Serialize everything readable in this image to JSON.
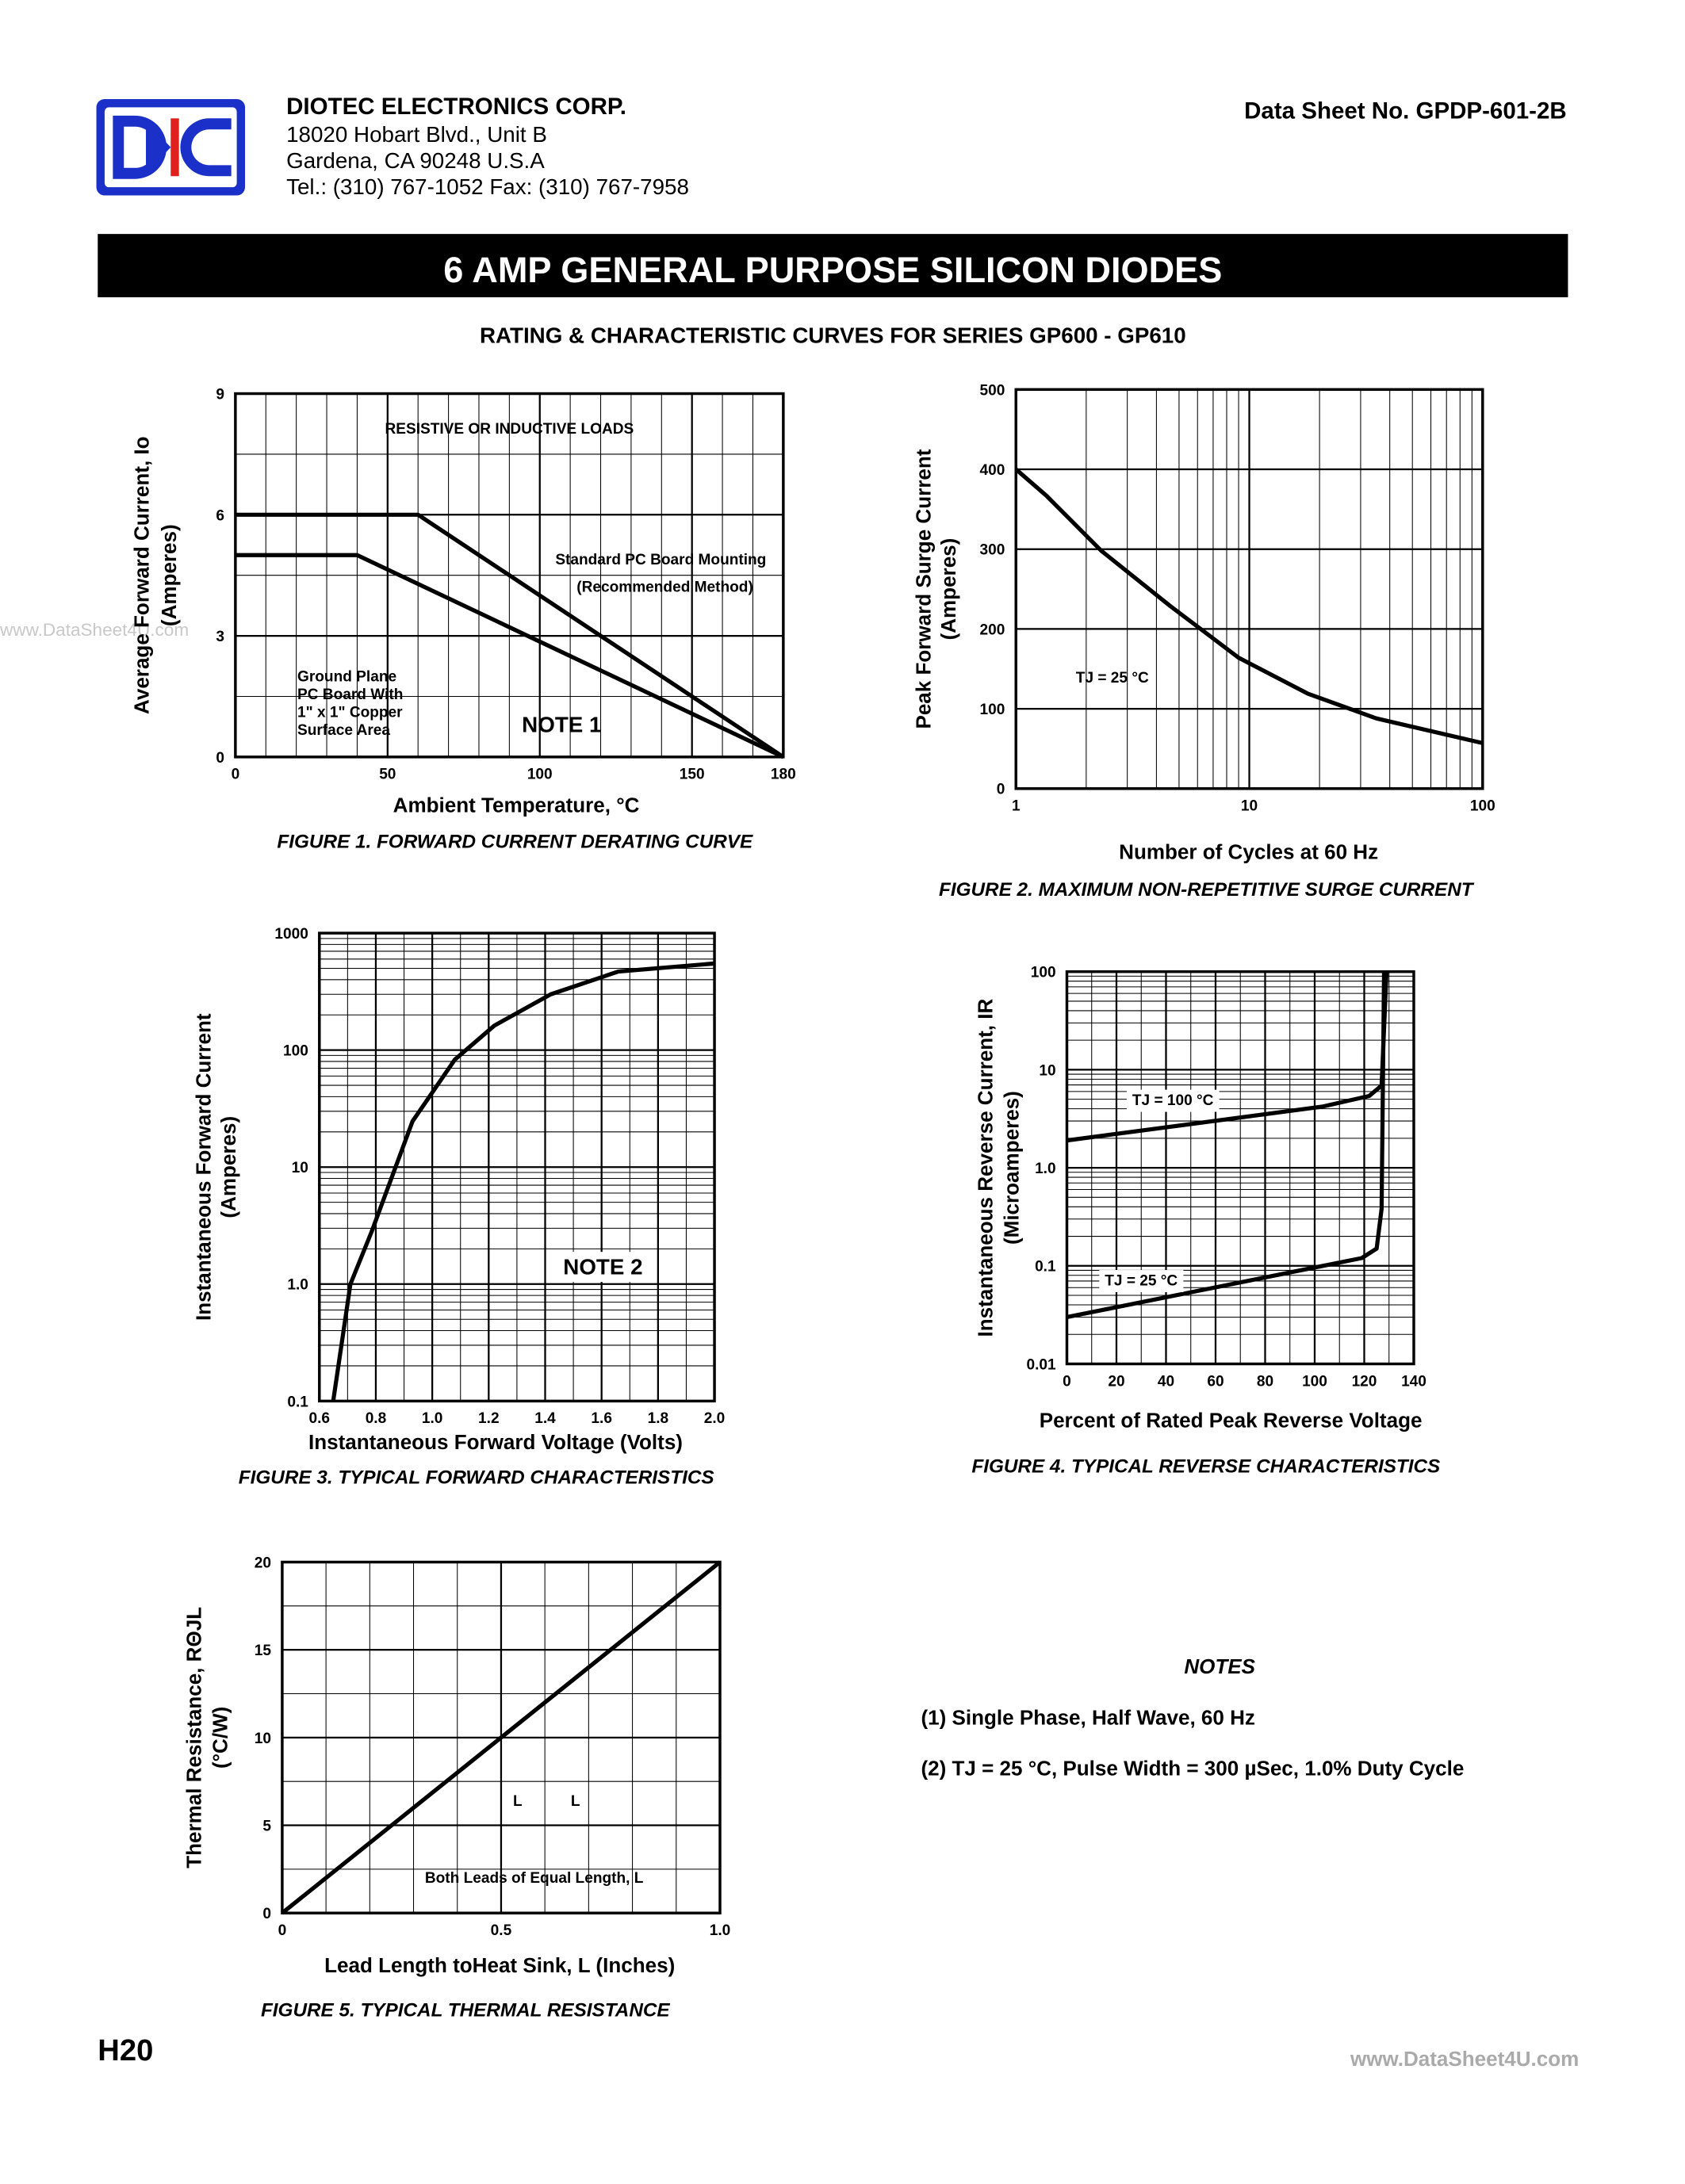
{
  "header": {
    "company": "DIOTEC   ELECTRONICS   CORP.",
    "address1": "18020 Hobart Blvd.,  Unit B",
    "address2": "Gardena, CA  90248    U.S.A",
    "phone": "Tel.:  (310) 767-1052     Fax:  (310) 767-7958",
    "datasheet": "Data Sheet No.  GPDP-601-2B"
  },
  "title": "6 AMP GENERAL PURPOSE SILICON DIODES",
  "subtitle": "RATING & CHARACTERISTIC CURVES FOR SERIES GP600 - GP610",
  "chart_data": [
    {
      "type": "line",
      "caption": "FIGURE 1.  FORWARD CURRENT DERATING CURVE",
      "xlabel": "Ambient  Temperature, °C",
      "ylabel": [
        "Average Forward Current, Io",
        "(Amperes)"
      ],
      "xlim": [
        0,
        180
      ],
      "ylim": [
        0,
        9
      ],
      "xticks": [
        0,
        50,
        100,
        150,
        180
      ],
      "yticks": [
        0,
        3,
        6,
        9
      ],
      "grid": true,
      "xgrid": [
        10,
        20,
        30,
        40,
        60,
        70,
        80,
        90,
        110,
        120,
        130,
        140,
        160,
        170
      ],
      "ygrid": [
        1.5,
        4.5,
        7.5
      ],
      "annotations": [
        "RESISTIVE OR INDUCTIVE LOADS",
        "Standard PC Board Mounting",
        "(Recommended Method)",
        "Ground Plane",
        "PC Board With",
        "1\" x 1\" Copper",
        "Surface Area",
        "NOTE 1"
      ],
      "series": [
        {
          "color": "#000000",
          "x": [
            0,
            60,
            180
          ],
          "values": [
            6,
            6,
            0
          ]
        },
        {
          "color": "#000000",
          "x": [
            0,
            40,
            180
          ],
          "values": [
            5,
            5,
            0
          ]
        }
      ]
    },
    {
      "type": "line",
      "caption": "FIGURE 2.  MAXIMUM NON-REPETITIVE SURGE CURRENT",
      "xlabel": "Number of Cycles at 60 Hz",
      "ylabel": [
        "Peak Forward Surge Current",
        "(Amperes)"
      ],
      "xlog": true,
      "xlim": [
        1,
        100
      ],
      "ylim": [
        0,
        500
      ],
      "xticks": [
        1,
        10,
        100
      ],
      "yticks": [
        0,
        100,
        200,
        300,
        400,
        500
      ],
      "grid": true,
      "xgrid": [
        2,
        3,
        4,
        5,
        6,
        7,
        8,
        9,
        20,
        30,
        40,
        50,
        60,
        70,
        80,
        90
      ],
      "annotations": [
        "TJ = 25 °C"
      ],
      "series": [
        {
          "color": "#000000",
          "x": [
            1,
            1.35,
            2.32,
            4.57,
            9,
            17.8,
            35,
            100
          ],
          "values": [
            400,
            367,
            298,
            229,
            164,
            119,
            88,
            57
          ]
        }
      ]
    },
    {
      "type": "line",
      "caption": "FIGURE 3.  TYPICAL FORWARD CHARACTERISTICS",
      "xlabel": "Instantaneous Forward Voltage (Volts)",
      "ylabel": [
        "Instantaneous Forward Current",
        "(Amperes)"
      ],
      "ylog": true,
      "xlim": [
        0.6,
        2.0
      ],
      "ylim": [
        0.1,
        1000
      ],
      "xticks": [
        0.6,
        0.8,
        {
          "value": 1,
          "label": "1.0"
        },
        1.2,
        1.4,
        1.6,
        1.8,
        {
          "value": 2,
          "label": "2.0"
        }
      ],
      "yticks": [
        0.1,
        {
          "value": 1,
          "label": "1.0"
        },
        10,
        100,
        1000
      ],
      "grid": true,
      "xgrid": [
        0.7,
        0.9,
        1.1,
        1.3,
        1.5,
        1.7,
        1.9
      ],
      "ygrid": [
        0.2,
        0.3,
        0.4,
        0.5,
        0.6,
        0.7,
        0.8,
        0.9,
        2,
        3,
        4,
        5,
        6,
        7,
        8,
        9,
        20,
        30,
        40,
        50,
        60,
        70,
        80,
        90,
        200,
        300,
        400,
        500,
        600,
        700,
        800,
        900
      ],
      "annotations": [
        "NOTE 2"
      ],
      "series": [
        {
          "color": "#000000",
          "x": [
            0.649,
            0.71,
            0.785,
            0.93,
            1.08,
            1.22,
            1.42,
            1.66,
            2.0
          ],
          "values": [
            0.1,
            1,
            2.8,
            24.6,
            83,
            162,
            300,
            470,
            550
          ]
        }
      ]
    },
    {
      "type": "line",
      "caption": "FIGURE 4.  TYPICAL REVERSE CHARACTERISTICS",
      "xlabel": "Percent of Rated Peak Reverse Voltage",
      "ylabel": [
        "Instantaneous Reverse Current, IR",
        "(Microamperes)"
      ],
      "ylog": true,
      "xlim": [
        0,
        140
      ],
      "ylim": [
        0.01,
        100
      ],
      "xticks": [
        0,
        20,
        40,
        60,
        80,
        100,
        120,
        140
      ],
      "yticks": [
        0.01,
        0.1,
        {
          "value": 1,
          "label": "1.0"
        },
        10,
        100
      ],
      "grid": true,
      "xgrid": [
        10,
        30,
        50,
        70,
        90,
        110,
        130
      ],
      "ygrid": [
        0.02,
        0.03,
        0.04,
        0.05,
        0.06,
        0.07,
        0.08,
        0.09,
        0.2,
        0.3,
        0.4,
        0.5,
        0.6,
        0.7,
        0.8,
        0.9,
        2,
        3,
        4,
        5,
        6,
        7,
        8,
        9,
        20,
        30,
        40,
        50,
        60,
        70,
        80,
        90
      ],
      "annotations": [
        "TJ = 100 °C",
        "TJ = 25 °C"
      ],
      "series": [
        {
          "color": "#000000",
          "x": [
            0,
            103,
            122,
            127,
            129
          ],
          "values": [
            1.9,
            4.2,
            5.4,
            6.9,
            100
          ]
        },
        {
          "color": "#000000",
          "x": [
            0,
            119,
            125,
            127,
            128
          ],
          "values": [
            0.03,
            0.12,
            0.15,
            0.38,
            100
          ]
        }
      ]
    },
    {
      "type": "line",
      "caption": "FIGURE 5.  TYPICAL THERMAL RESISTANCE",
      "xlabel": "Lead Length toHeat Sink, L (Inches)",
      "ylabel": [
        "Thermal Resistance, RΘJL",
        "(°C/W)"
      ],
      "xlim": [
        0,
        1
      ],
      "ylim": [
        0,
        20
      ],
      "xticks": [
        0,
        0.5,
        {
          "value": 1,
          "label": "1.0"
        }
      ],
      "yticks": [
        0,
        5,
        10,
        15,
        20
      ],
      "grid": true,
      "xgrid": [
        0.1,
        0.2,
        0.3,
        0.4,
        0.6,
        0.7,
        0.8,
        0.9
      ],
      "ygrid": [
        2.5,
        7.5,
        12.5,
        17.5
      ],
      "annotations": [
        "L",
        "L",
        "Both Leads of Equal Length, L"
      ],
      "series": [
        {
          "color": "#000000",
          "x": [
            0,
            1
          ],
          "values": [
            0,
            20
          ]
        }
      ]
    }
  ],
  "notes": {
    "title": "NOTES",
    "items": [
      "(1) Single Phase, Half Wave, 60 Hz",
      "(2) TJ = 25 °C, Pulse Width = 300 µSec, 1.0% Duty Cycle"
    ]
  },
  "page_number": "H20",
  "watermarks": [
    "www.DataSheet4U.com",
    "www.DataSheet4U.com"
  ]
}
